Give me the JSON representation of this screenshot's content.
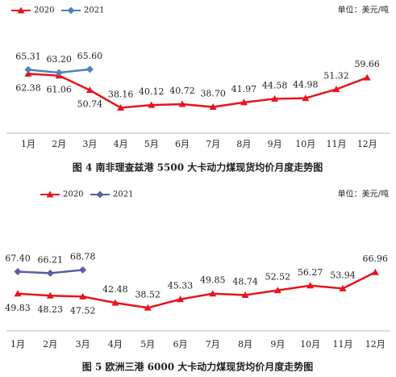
{
  "chart_data": [
    {
      "type": "line",
      "title": "图 4   南非理查兹港 5500 大卡动力煤现货均价月度走势图",
      "unit_label": "单位：美元/吨",
      "categories": [
        "1月",
        "2月",
        "3月",
        "4月",
        "5月",
        "6月",
        "7月",
        "8月",
        "9月",
        "10月",
        "11月",
        "12月"
      ],
      "series": [
        {
          "name": "2020",
          "color": "#e8141b",
          "marker": "triangle",
          "values": [
            62.38,
            61.06,
            50.74,
            38.16,
            40.12,
            40.72,
            38.7,
            41.97,
            44.58,
            44.98,
            51.32,
            59.66
          ],
          "value_labels": [
            "62.38",
            "61.06",
            "50.74",
            "38.16",
            "40.12",
            "40.72",
            "38.70",
            "41.97",
            "44.58",
            "44.98",
            "51.32",
            "59.66"
          ]
        },
        {
          "name": "2021",
          "color": "#4f81bd",
          "marker": "diamond",
          "values": [
            65.31,
            63.2,
            65.6,
            null,
            null,
            null,
            null,
            null,
            null,
            null,
            null,
            null
          ],
          "value_labels": [
            "65.31",
            "63.20",
            "65.60",
            null,
            null,
            null,
            null,
            null,
            null,
            null,
            null,
            null
          ]
        }
      ],
      "ylim": [
        20,
        92
      ],
      "legend": "top-left"
    },
    {
      "type": "line",
      "title": "图 5   欧洲三港 6000 大卡动力煤现货均价月度走势图",
      "unit_label": "单位：美元/吨",
      "categories": [
        "1月",
        "2月",
        "3月",
        "4月",
        "5月",
        "6月",
        "7月",
        "8月",
        "9月",
        "10月",
        "11月",
        "12月"
      ],
      "series": [
        {
          "name": "2020",
          "color": "#e8141b",
          "marker": "triangle",
          "values": [
            49.83,
            48.23,
            47.52,
            42.48,
            38.52,
            45.33,
            49.85,
            48.74,
            52.52,
            56.27,
            53.94,
            66.96
          ],
          "value_labels": [
            "49.83",
            "48.23",
            "47.52",
            "42.48",
            "38.52",
            "45.33",
            "49.85",
            "48.74",
            "52.52",
            "56.27",
            "53.94",
            "66.96"
          ]
        },
        {
          "name": "2021",
          "color": "#5b5f9f",
          "marker": "diamond",
          "values": [
            67.4,
            66.21,
            68.78,
            null,
            null,
            null,
            null,
            null,
            null,
            null,
            null,
            null
          ],
          "value_labels": [
            "67.40",
            "66.21",
            "68.78",
            null,
            null,
            null,
            null,
            null,
            null,
            null,
            null,
            null
          ]
        }
      ],
      "ylim": [
        20,
        120
      ],
      "legend": "top-center"
    }
  ]
}
